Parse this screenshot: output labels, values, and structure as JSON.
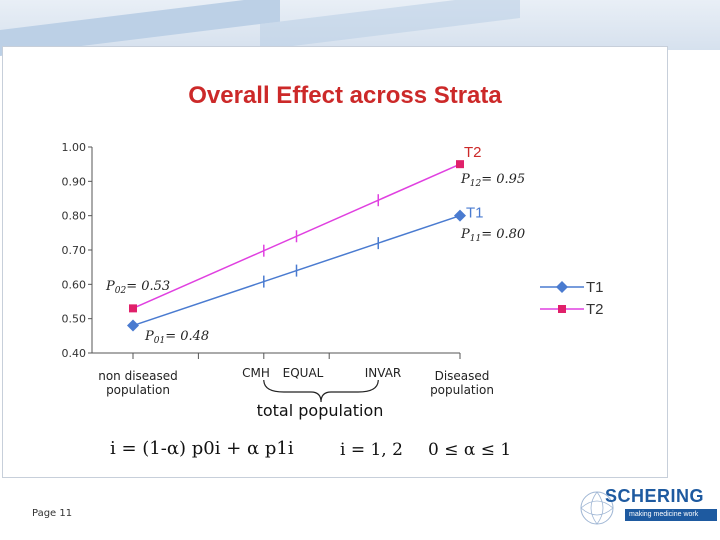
{
  "chart_data": {
    "type": "line",
    "title": "Overall Effect across Strata",
    "xlabel": "total population",
    "ylabel": "",
    "ylim": [
      0.4,
      1.0
    ],
    "y_ticks": [
      "1.00",
      "0.90",
      "0.80",
      "0.70",
      "0.60",
      "0.50",
      "0.40"
    ],
    "y_tick_values": [
      1.0,
      0.9,
      0.8,
      0.7,
      0.6,
      0.5,
      0.4
    ],
    "x_positions": [
      0,
      0.2,
      0.4,
      0.6,
      1.0
    ],
    "categories": [
      {
        "label": "non diseased population",
        "x": 0
      },
      {
        "label": "CMH",
        "x": 0.4
      },
      {
        "label": "EQUAL",
        "x": 0.5
      },
      {
        "label": "INVAR",
        "x": 0.75
      },
      {
        "label": "Diseased population",
        "x": 1.0
      }
    ],
    "series": [
      {
        "name": "T1",
        "color": "#4a7bd0",
        "marker": "diamond",
        "endpoints": [
          0.48,
          0.8
        ],
        "tick_marks": [
          {
            "x": 0.4,
            "y": 0.608
          },
          {
            "x": 0.5,
            "y": 0.64
          },
          {
            "x": 0.75,
            "y": 0.72
          }
        ]
      },
      {
        "name": "T2",
        "color": "#e040e0",
        "marker": "square",
        "endpoints": [
          0.53,
          0.95
        ],
        "tick_marks": [
          {
            "x": 0.4,
            "y": 0.698
          },
          {
            "x": 0.5,
            "y": 0.74
          },
          {
            "x": 0.75,
            "y": 0.845
          }
        ]
      }
    ],
    "annotations": [
      {
        "symbol": "P",
        "sub": "02",
        "value": "= 0.53"
      },
      {
        "symbol": "P",
        "sub": "01",
        "value": "= 0.48"
      },
      {
        "symbol": "P",
        "sub": "12",
        "value": "= 0.95"
      },
      {
        "symbol": "P",
        "sub": "11",
        "value": "= 0.80"
      }
    ],
    "legend": {
      "placement": "right",
      "entries": [
        "T1",
        "T2"
      ]
    },
    "grid": false
  },
  "formula": {
    "main": "i = (1-α) p0i + α p1i",
    "index": "i = 1, 2",
    "range": "0 ≤ α ≤ 1"
  },
  "footer": {
    "page": "Page 11",
    "brand": "SCHERING",
    "tagline": "making medicine work"
  }
}
